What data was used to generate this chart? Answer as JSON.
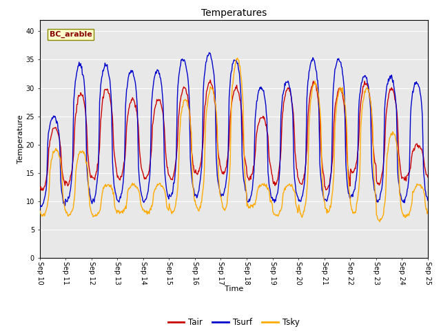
{
  "title": "Temperatures",
  "xlabel": "Time",
  "ylabel": "Temperature",
  "annotation": "BC_arable",
  "ylim": [
    0,
    42
  ],
  "yticks": [
    0,
    5,
    10,
    15,
    20,
    25,
    30,
    35,
    40
  ],
  "colors": {
    "Tair": "#cc0000",
    "Tsurf": "#0000cc",
    "Tsky": "#ffaa00"
  },
  "bg_color": "#e8e8e8",
  "legend_labels": [
    "Tair",
    "Tsurf",
    "Tsky"
  ],
  "tair_peaks": [
    23,
    29,
    30,
    28,
    28,
    30,
    31,
    30,
    25,
    30,
    31,
    30,
    31,
    30,
    20
  ],
  "tair_lows": [
    12,
    13,
    14,
    14,
    14,
    14,
    15,
    15,
    14,
    13,
    13,
    12,
    15,
    13,
    14
  ],
  "tsurf_peaks": [
    25,
    34,
    34,
    33,
    33,
    35,
    36,
    35,
    30,
    31,
    35,
    35,
    32,
    32,
    31
  ],
  "tsurf_lows": [
    9,
    10,
    10,
    10,
    10,
    11,
    11,
    11,
    10,
    10,
    10,
    10,
    11,
    10,
    10
  ],
  "tsky_peaks": [
    19,
    19,
    13,
    13,
    13,
    28,
    30,
    35,
    13,
    13,
    31,
    30,
    30,
    22,
    13
  ],
  "tsky_lows": [
    7.5,
    7.5,
    7.5,
    8,
    8,
    8,
    8.5,
    8.5,
    9,
    7.5,
    7.5,
    8,
    8,
    6.5,
    7.5
  ],
  "tair_phase": 4,
  "tsurf_phase": 2,
  "tsky_phase": 5
}
